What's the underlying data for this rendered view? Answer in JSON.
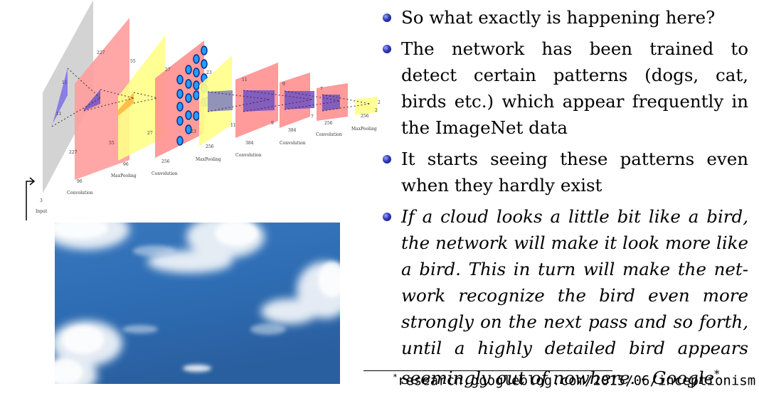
{
  "diagram": {
    "input_label": "Input",
    "input_depth": "3",
    "layers": [
      {
        "name": "Convolution",
        "size_top": "227",
        "size_side": "227",
        "depth": "96",
        "kernel": "11"
      },
      {
        "name": "MaxPooling",
        "size_top": "55",
        "size_side": "55",
        "depth": "96"
      },
      {
        "name": "Convolution",
        "size_top": "27",
        "size_side": "27",
        "depth": "256"
      },
      {
        "name": "MaxPooling",
        "size_top": "23",
        "size_side": "23",
        "depth": "256"
      },
      {
        "name": "Convolution",
        "size_top": "11",
        "size_side": "11",
        "depth": "384"
      },
      {
        "name": "Convolution",
        "size_top": "9",
        "size_side": "9",
        "depth": "384"
      },
      {
        "name": "Convolution",
        "size_top": "7",
        "size_side": "7",
        "depth": "256"
      },
      {
        "name": "MaxPooling",
        "size_top": "2",
        "size_side": "2",
        "depth": "256"
      }
    ],
    "colors": {
      "input": "#d3d3d3",
      "conv": "#ff9c9c",
      "pool": "#ffff99",
      "kernel": "#7c6bd8",
      "neuron": "#1e9fff"
    }
  },
  "photo": {
    "subject": "sky with clouds"
  },
  "bullets": [
    {
      "text": "So what exactly is happening here?",
      "italic": false
    },
    {
      "text": "The network has been trained to detect certain patterns (dogs, cat, birds etc.) which appear frequently in the ImageNet data",
      "italic": false
    },
    {
      "text": "It starts seeing these patterns even when they hardly exist",
      "italic": false
    },
    {
      "text": "If a cloud looks a little bit like a bird, the network will make it look more like a bird. This in turn will make the net-work recognize the bird even more strongly on the next pass and so forth, until a highly detailed bird appears seemingly out of nowhere. - Google",
      "italic": true,
      "footnote_mark": "*"
    }
  ],
  "footnote": {
    "mark": "*",
    "text": "research.googleblog.com/2015/06/inceptionism"
  }
}
